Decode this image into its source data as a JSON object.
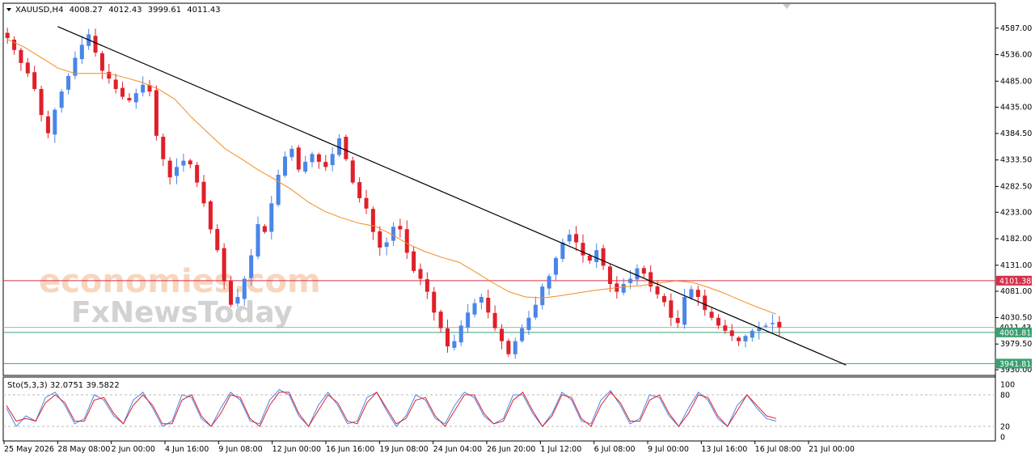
{
  "header": {
    "symbol": "XAUUSD,H4",
    "open": "4008.27",
    "high": "4012.43",
    "low": "3999.61",
    "close": "4011.43"
  },
  "watermark": {
    "line1": "economies.com",
    "line2": "FxNewsToday"
  },
  "colors": {
    "bull": "#4a86e8",
    "bear": "#e0202a",
    "ma": "#f28c1e",
    "trendline": "#000000",
    "resistance": "#d6304a",
    "support": "#3aa070",
    "stoch_main": "#4a86e8",
    "stoch_signal": "#e0202a"
  },
  "levels": {
    "resistance": "4101.38",
    "support_1": "4001.81",
    "support_2": "3941.81",
    "current_price_label": "4011.43"
  },
  "indicator": {
    "label": "Sto(5,3,3) 32.0751 39.5822",
    "levels": [
      "100",
      "80",
      "20",
      "0"
    ]
  },
  "chart_data": {
    "type": "candlestick",
    "timeframe": "H4",
    "ylim": [
      3930,
      4610
    ],
    "y_ticks": [
      "4587.00",
      "4536.00",
      "4485.00",
      "4435.00",
      "4384.50",
      "4333.50",
      "4282.50",
      "4233.00",
      "4182.00",
      "4131.00",
      "4081.00",
      "4030.50",
      "3979.50",
      "3930.00"
    ],
    "x_ticks": [
      "25 May 2026",
      "28 May 08:00",
      "2 Jun 00:00",
      "4 Jun 16:00",
      "9 Jun 08:00",
      "12 Jun 00:00",
      "16 Jun 16:00",
      "19 Jun 08:00",
      "24 Jun 04:00",
      "26 Jun 20:00",
      "1 Jul 12:00",
      "6 Jul 08:00",
      "9 Jul 00:00",
      "13 Jul 16:00",
      "16 Jul 08:00",
      "21 Jul 00:00"
    ],
    "close_path": [
      4568,
      4545,
      4520,
      4500,
      4470,
      4420,
      4385,
      4430,
      4465,
      4495,
      4530,
      4555,
      4575,
      4540,
      4505,
      4490,
      4470,
      4455,
      4448,
      4462,
      4478,
      4465,
      4380,
      4335,
      4300,
      4320,
      4332,
      4325,
      4290,
      4250,
      4200,
      4160,
      4100,
      4055,
      4070,
      4105,
      4150,
      4210,
      4195,
      4250,
      4305,
      4340,
      4355,
      4315,
      4330,
      4345,
      4330,
      4320,
      4345,
      4375,
      4335,
      4290,
      4260,
      4240,
      4195,
      4165,
      4175,
      4205,
      4200,
      4155,
      4120,
      4105,
      4080,
      4040,
      4010,
      3975,
      3985,
      4015,
      4040,
      4058,
      4070,
      4040,
      4010,
      3985,
      3960,
      3985,
      4010,
      4030,
      4055,
      4090,
      4110,
      4145,
      4175,
      4190,
      4175,
      4150,
      4140,
      4160,
      4130,
      4095,
      4080,
      4095,
      4105,
      4125,
      4115,
      4090,
      4075,
      4060,
      4030,
      4020,
      4070,
      4085,
      4070,
      4045,
      4030,
      4015,
      4005,
      3995,
      3985,
      3995,
      4005,
      4010,
      4015,
      4020,
      4011.43
    ],
    "ma_path": [
      4565,
      4550,
      4530,
      4510,
      4500,
      4500,
      4500,
      4492,
      4483,
      4470,
      4450,
      4415,
      4385,
      4355,
      4335,
      4314,
      4296,
      4276,
      4252,
      4234,
      4222,
      4212,
      4206,
      4190,
      4171,
      4157,
      4146,
      4137,
      4118,
      4098,
      4080,
      4070,
      4068,
      4072,
      4077,
      4082,
      4086,
      4090,
      4092,
      4097,
      4101,
      4098,
      4088,
      4076,
      4062,
      4049,
      4037
    ],
    "trendline": {
      "from": {
        "x": "28 May 08:00",
        "y": 4590
      },
      "to": {
        "x": "21 Jul 00:00",
        "y": 3970
      }
    },
    "stochastic": {
      "main": [
        55,
        20,
        40,
        30,
        75,
        85,
        60,
        25,
        35,
        80,
        70,
        40,
        25,
        70,
        85,
        55,
        20,
        30,
        80,
        75,
        35,
        20,
        55,
        85,
        70,
        30,
        25,
        70,
        90,
        80,
        40,
        20,
        60,
        85,
        60,
        25,
        30,
        75,
        85,
        50,
        20,
        40,
        80,
        70,
        35,
        25,
        60,
        85,
        75,
        40,
        25,
        35,
        80,
        80,
        45,
        20,
        45,
        85,
        70,
        30,
        25,
        70,
        88,
        60,
        25,
        35,
        80,
        75,
        40,
        20,
        55,
        85,
        70,
        35,
        20,
        60,
        80,
        55,
        35,
        30
      ],
      "signal": [
        60,
        30,
        35,
        30,
        65,
        80,
        65,
        30,
        30,
        70,
        75,
        45,
        25,
        60,
        80,
        60,
        25,
        25,
        70,
        80,
        40,
        20,
        45,
        80,
        75,
        35,
        20,
        60,
        85,
        85,
        45,
        20,
        50,
        80,
        65,
        30,
        25,
        65,
        85,
        55,
        25,
        35,
        70,
        75,
        40,
        20,
        50,
        80,
        80,
        45,
        25,
        30,
        70,
        85,
        50,
        20,
        40,
        80,
        75,
        35,
        20,
        60,
        85,
        65,
        30,
        30,
        70,
        80,
        45,
        20,
        45,
        80,
        75,
        40,
        20,
        50,
        80,
        60,
        40,
        35
      ]
    }
  }
}
